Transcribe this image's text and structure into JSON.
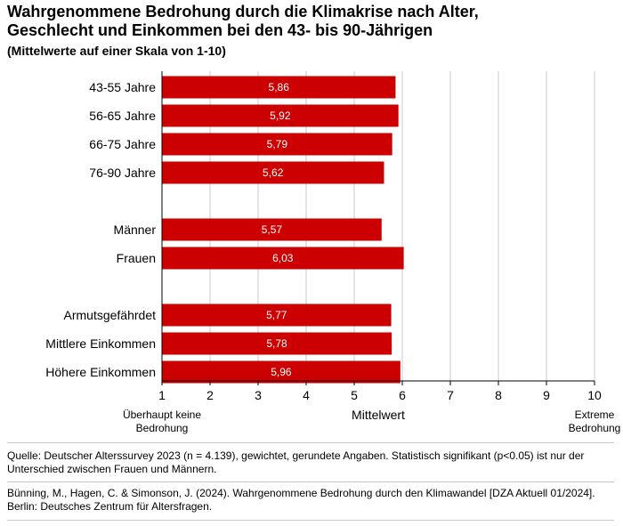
{
  "chart_data": {
    "type": "bar",
    "orientation": "horizontal",
    "title_line1": "Wahrgenommene Bedrohung durch die Klimakrise nach Alter,",
    "title_line2": "Geschlecht und Einkommen bei den 43- bis 90-Jährigen",
    "subtitle": "(Mittelwerte auf einer Skala von 1-10)",
    "groups": [
      {
        "categories": [
          "43-55 Jahre",
          "56-65 Jahre",
          "66-75 Jahre",
          "76-90 Jahre"
        ],
        "values": [
          5.86,
          5.92,
          5.79,
          5.62
        ],
        "labels": [
          "5,86",
          "5,92",
          "5,79",
          "5,62"
        ]
      },
      {
        "categories": [
          "Männer",
          "Frauen"
        ],
        "values": [
          5.57,
          6.03
        ],
        "labels": [
          "5,57",
          "6,03"
        ]
      },
      {
        "categories": [
          "Armutsgefährdet",
          "Mittlere Einkommen",
          "Höhere Einkommen"
        ],
        "values": [
          5.77,
          5.78,
          5.96
        ],
        "labels": [
          "5,77",
          "5,78",
          "5,96"
        ]
      }
    ],
    "xlim": [
      1,
      10
    ],
    "xticks": [
      "1",
      "2",
      "3",
      "4",
      "5",
      "6",
      "7",
      "8",
      "9",
      "10"
    ],
    "xlabel": "Mittelwert",
    "x_min_annotation": [
      "Überhaupt keine",
      "Bedrohung"
    ],
    "x_max_annotation": [
      "Extreme",
      "Bedrohung"
    ],
    "grid": true,
    "bar_color": "#cc0000",
    "grid_color": "#c8c8c8"
  },
  "source_note": "Quelle: Deutscher Alterssurvey 2023 (n = 4.139), gewichtet, gerundete Angaben. Statistisch signifikant (p<0.05) ist nur der Unterschied zwischen Frauen und Männern.",
  "citation": "Bünning, M., Hagen, C. & Simonson, J. (2024). Wahrgenommene Bedrohung durch den Klimawandel [DZA Aktuell 01/2024]. Berlin: Deutsches Zentrum für Altersfragen."
}
